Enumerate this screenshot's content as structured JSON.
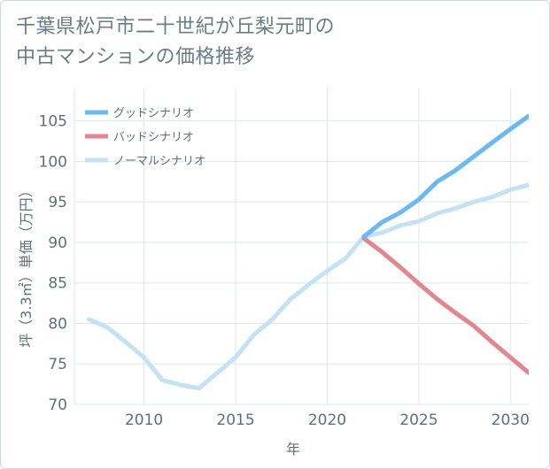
{
  "title_line1": "千葉県松戸市二十世紀が丘梨元町の",
  "title_line2": "中古マンションの価格推移",
  "chart_data": {
    "type": "line",
    "xlabel": "年",
    "ylabel": "坪（3.3㎡）単価（万円）",
    "xlim": [
      2006.2,
      2031
    ],
    "ylim": [
      70,
      109
    ],
    "xticks": [
      2010,
      2015,
      2020,
      2025,
      2030
    ],
    "yticks": [
      70,
      75,
      80,
      85,
      90,
      95,
      100,
      105
    ],
    "legend_position": "top-left",
    "series": [
      {
        "name": "グッドシナリオ",
        "color": "#6cb8f0",
        "x": [
          2022,
          2023,
          2024,
          2025,
          2026,
          2027,
          2028,
          2029,
          2030,
          2031
        ],
        "y": [
          90.7,
          92.5,
          93.7,
          95.3,
          97.5,
          98.9,
          100.6,
          102.3,
          104.0,
          105.6
        ]
      },
      {
        "name": "バッドシナリオ",
        "color": "#e0878f",
        "x": [
          2022,
          2023,
          2024,
          2025,
          2026,
          2027,
          2028,
          2029,
          2030,
          2031
        ],
        "y": [
          90.5,
          88.8,
          86.9,
          84.9,
          83.0,
          81.3,
          79.7,
          77.7,
          75.8,
          73.9
        ]
      },
      {
        "name": "ノーマルシナリオ",
        "color": "#c4e2f2",
        "x": [
          2007,
          2008,
          2009,
          2010,
          2011,
          2012,
          2013,
          2014,
          2015,
          2016,
          2017,
          2018,
          2019,
          2020,
          2021,
          2022,
          2023,
          2024,
          2025,
          2026,
          2027,
          2028,
          2029,
          2030,
          2031
        ],
        "y": [
          80.5,
          79.5,
          77.7,
          75.8,
          73.0,
          72.4,
          72.0,
          73.9,
          75.8,
          78.6,
          80.5,
          83.0,
          84.8,
          86.5,
          88.0,
          90.7,
          91.2,
          92.1,
          92.6,
          93.6,
          94.2,
          95.0,
          95.6,
          96.5,
          97.1
        ]
      }
    ]
  }
}
